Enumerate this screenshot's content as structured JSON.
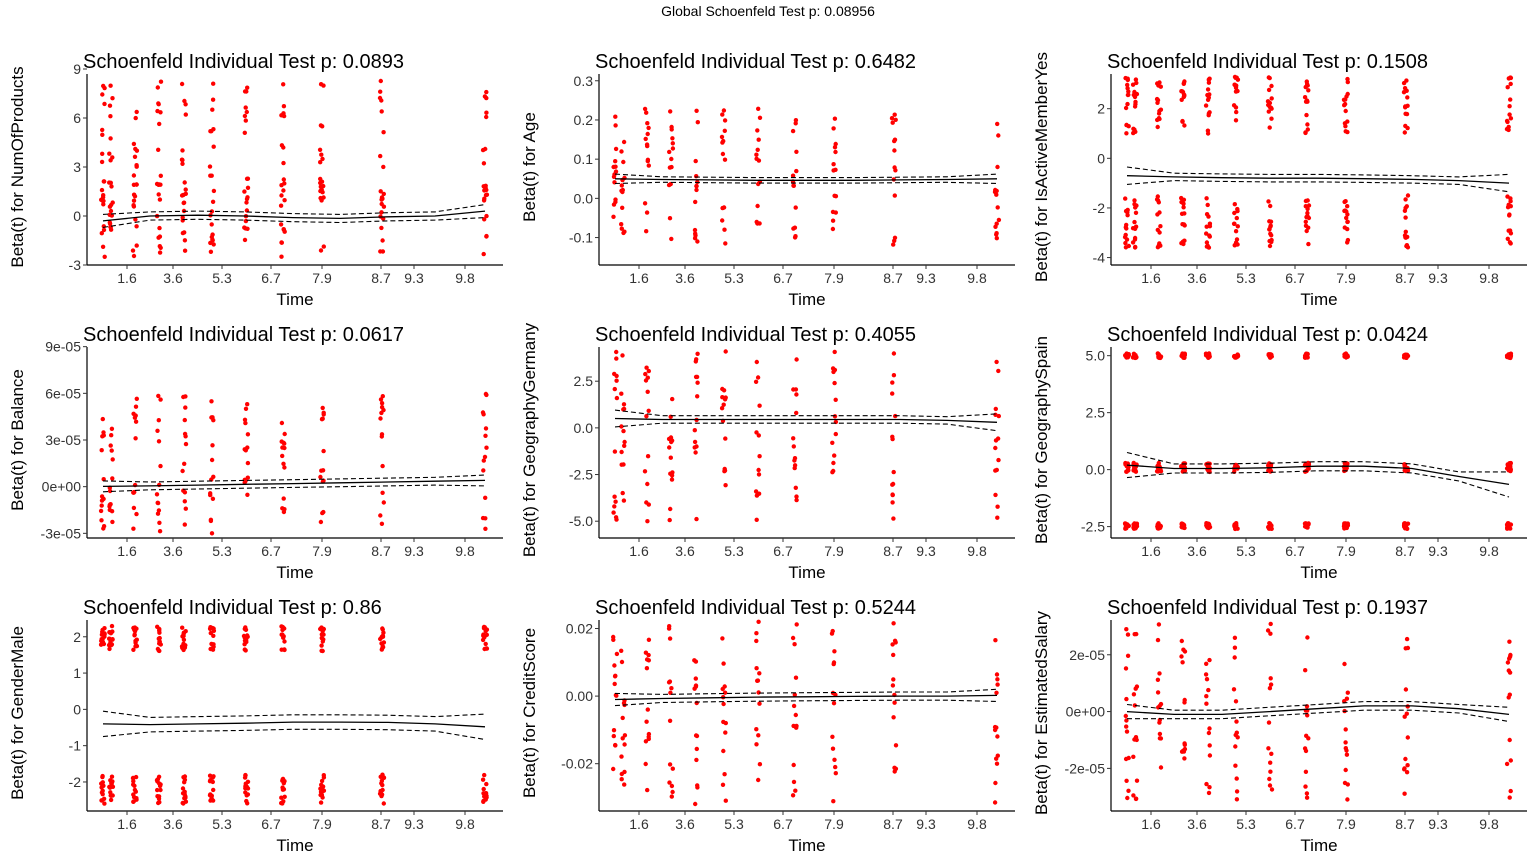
{
  "global_title": "Global Schoenfeld Test p: 0.08956",
  "x_ticks": [
    "1.6",
    "3.6",
    "5.3",
    "6.7",
    "7.9",
    "8.7",
    "9.3",
    "9.8"
  ],
  "colors": {
    "points": "#ff0000",
    "lines": "#000000",
    "axis": "#000000"
  },
  "chart_data": [
    {
      "type": "scatter",
      "title": "Schoenfeld Individual Test p: 0.0893",
      "xlabel": "Time",
      "ylabel": "Beta(t) for NumOfProducts",
      "ylim": [
        -3,
        9
      ],
      "yticks": [
        {
          "v": 9,
          "label": "9"
        },
        {
          "v": 6,
          "label": "6"
        },
        {
          "v": 3,
          "label": "3"
        },
        {
          "v": 0,
          "label": "0"
        },
        {
          "v": -3,
          "label": "-3"
        }
      ],
      "clusters": [
        {
          "lo": -2.5,
          "hi": 2.5,
          "lo2": 3,
          "hi2": 8.3
        }
      ],
      "fit": [
        -0.3,
        0.0,
        0.05,
        0.0,
        -0.1,
        -0.15,
        -0.05,
        0.0,
        0.3
      ],
      "band": 0.25,
      "band_flare": 0.4
    },
    {
      "type": "scatter",
      "title": "Schoenfeld Individual Test p: 0.6482",
      "xlabel": "Time",
      "ylabel": "Beta(t) for Age",
      "ylim": [
        -0.17,
        0.33
      ],
      "yticks": [
        {
          "v": 0.3,
          "label": "0.3"
        },
        {
          "v": 0.2,
          "label": "0.2"
        },
        {
          "v": 0.1,
          "label": "0.1"
        },
        {
          "v": 0.0,
          "label": "0.0"
        },
        {
          "v": -0.1,
          "label": "-0.1"
        }
      ],
      "clusters": [
        {
          "lo": -0.12,
          "hi": 0.23
        }
      ],
      "fit": [
        0.05,
        0.048,
        0.047,
        0.046,
        0.046,
        0.046,
        0.047,
        0.048,
        0.05
      ],
      "band": 0.007,
      "band_flare": 0.012
    },
    {
      "type": "scatter",
      "title": "Schoenfeld Individual Test p: 0.1508",
      "xlabel": "Time",
      "ylabel": "Beta(t) for IsActiveMemberYes",
      "ylim": [
        -4.3,
        3.6
      ],
      "yticks": [
        {
          "v": 2,
          "label": "2"
        },
        {
          "v": 0,
          "label": "0"
        },
        {
          "v": -2,
          "label": "-2"
        },
        {
          "v": -4,
          "label": "-4"
        }
      ],
      "clusters": [
        {
          "lo": -3.6,
          "hi": -1.5
        },
        {
          "lo": 1.0,
          "hi": 3.3
        }
      ],
      "fit": [
        -0.7,
        -0.75,
        -0.78,
        -0.8,
        -0.8,
        -0.82,
        -0.85,
        -0.9,
        -1.0
      ],
      "band": 0.15,
      "band_flare": 0.35
    },
    {
      "type": "scatter",
      "title": "Schoenfeld Individual Test p: 0.0617",
      "xlabel": "Time",
      "ylabel": "Beta(t) for Balance",
      "ylim": [
        -3.3e-05,
        9.3e-05
      ],
      "yticks": [
        {
          "v": 9e-05,
          "label": "9e-05"
        },
        {
          "v": 6e-05,
          "label": "6e-05"
        },
        {
          "v": 3e-05,
          "label": "3e-05"
        },
        {
          "v": 0,
          "label": "0e+00"
        },
        {
          "v": -3e-05,
          "label": "-3e-05"
        }
      ],
      "clusters": [
        {
          "lo": -3e-05,
          "hi": 6e-05
        }
      ],
      "fit": [
        2e-07,
        5e-07,
        1e-06,
        1.5e-06,
        2e-06,
        2.5e-06,
        3e-06,
        3.5e-06,
        4e-06
      ],
      "band": 2.5e-06,
      "band_flare": 3.5e-06
    },
    {
      "type": "scatter",
      "title": "Schoenfeld Individual Test p: 0.4055",
      "xlabel": "Time",
      "ylabel": "Beta(t) for GeographyGermany",
      "ylim": [
        -5.9,
        4.6
      ],
      "yticks": [
        {
          "v": 2.5,
          "label": "2.5"
        },
        {
          "v": 0,
          "label": "0.0"
        },
        {
          "v": -2.5,
          "label": "-2.5"
        },
        {
          "v": -5,
          "label": "-5.0"
        }
      ],
      "clusters": [
        {
          "lo": -5.0,
          "hi": 4.2
        }
      ],
      "fit": [
        0.5,
        0.45,
        0.45,
        0.45,
        0.45,
        0.45,
        0.45,
        0.4,
        0.3
      ],
      "band": 0.2,
      "band_flare": 0.45
    },
    {
      "type": "scatter",
      "title": "Schoenfeld Individual Test p: 0.0424",
      "xlabel": "Time",
      "ylabel": "Beta(t) for GeographySpain",
      "ylim": [
        -3.0,
        5.6
      ],
      "yticks": [
        {
          "v": 5.0,
          "label": "5.0"
        },
        {
          "v": 2.5,
          "label": "2.5"
        },
        {
          "v": 0,
          "label": "0.0"
        },
        {
          "v": -2.5,
          "label": "-2.5"
        }
      ],
      "clusters": [
        {
          "lo": -2.6,
          "hi": -2.35
        },
        {
          "lo": -0.1,
          "hi": 0.3
        },
        {
          "lo": 4.9,
          "hi": 5.1
        }
      ],
      "fit": [
        0.2,
        0.05,
        0.05,
        0.08,
        0.15,
        0.15,
        0.05,
        -0.3,
        -0.65
      ],
      "band": 0.2,
      "band_flare": 0.55
    },
    {
      "type": "scatter",
      "title": "Schoenfeld Individual Test p: 0.86",
      "xlabel": "Time",
      "ylabel": "Beta(t) for GenderMale",
      "ylim": [
        -2.8,
        2.6
      ],
      "yticks": [
        {
          "v": 2,
          "label": "2"
        },
        {
          "v": 1,
          "label": "1"
        },
        {
          "v": 0,
          "label": "0"
        },
        {
          "v": -1,
          "label": "-1"
        },
        {
          "v": -2,
          "label": "-2"
        }
      ],
      "clusters": [
        {
          "lo": -2.6,
          "hi": -1.8
        },
        {
          "lo": 1.6,
          "hi": 2.3
        }
      ],
      "fit": [
        -0.4,
        -0.42,
        -0.4,
        -0.38,
        -0.35,
        -0.35,
        -0.36,
        -0.4,
        -0.48
      ],
      "band": 0.2,
      "band_flare": 0.35
    },
    {
      "type": "scatter",
      "title": "Schoenfeld Individual Test p: 0.5244",
      "xlabel": "Time",
      "ylabel": "Beta(t) for CreditScore",
      "ylim": [
        -0.034,
        0.024
      ],
      "yticks": [
        {
          "v": 0.02,
          "label": "0.02"
        },
        {
          "v": 0,
          "label": "0.00"
        },
        {
          "v": -0.02,
          "label": "-0.02"
        }
      ],
      "clusters": [
        {
          "lo": -0.032,
          "hi": 0.022
        }
      ],
      "fit": [
        -0.001,
        -0.0007,
        -0.0005,
        -0.0003,
        -0.0002,
        -0.0001,
        0.0,
        0.0,
        0.0002
      ],
      "band": 0.0012,
      "band_flare": 0.0018
    },
    {
      "type": "scatter",
      "title": "Schoenfeld Individual Test p: 0.1937",
      "xlabel": "Time",
      "ylabel": "Beta(t) for EstimatedSalary",
      "ylim": [
        -3.5e-05,
        3.4e-05
      ],
      "yticks": [
        {
          "v": 2e-05,
          "label": "2e-05"
        },
        {
          "v": 0,
          "label": "0e+00"
        },
        {
          "v": -2e-05,
          "label": "-2e-05"
        }
      ],
      "clusters": [
        {
          "lo": -3.1e-05,
          "hi": 3.1e-05
        }
      ],
      "fit": [
        0.0,
        -1e-06,
        -1e-06,
        0.0,
        1e-06,
        2e-06,
        2e-06,
        1e-06,
        -1e-06
      ],
      "band": 1.5e-06,
      "band_flare": 2.5e-06
    }
  ]
}
